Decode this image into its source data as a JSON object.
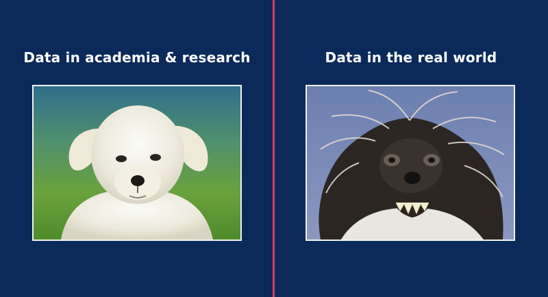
{
  "slide": {
    "left_caption": "Data in academia & research",
    "right_caption": "Data in the real world"
  },
  "colors": {
    "background": "#0b2a5a",
    "divider": "#e3356b",
    "caption_text": "#ffffff",
    "frame_border": "#f2f2ee"
  },
  "images": {
    "left": "cute-white-puppy-photo",
    "right": "scruffy-dog-photo"
  }
}
